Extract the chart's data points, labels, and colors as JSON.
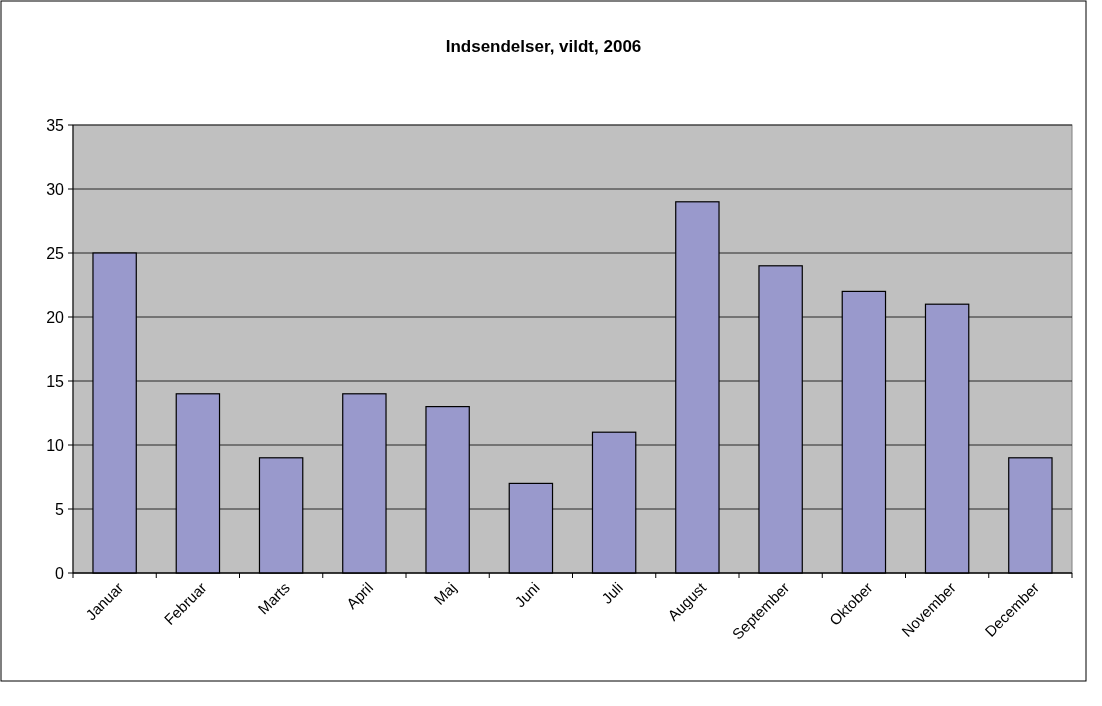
{
  "chart_data": {
    "type": "bar",
    "title": "Indsendelser, vildt, 2006",
    "categories": [
      "Januar",
      "Februar",
      "Marts",
      "April",
      "Maj",
      "Juni",
      "Juli",
      "August",
      "September",
      "Oktober",
      "November",
      "December"
    ],
    "values": [
      25,
      14,
      9,
      14,
      13,
      7,
      11,
      29,
      24,
      22,
      21,
      9
    ],
    "color": "#9999cc",
    "ylim": [
      0,
      35
    ],
    "yticks": [
      0,
      5,
      10,
      15,
      20,
      25,
      30,
      35
    ],
    "grid": "y"
  }
}
